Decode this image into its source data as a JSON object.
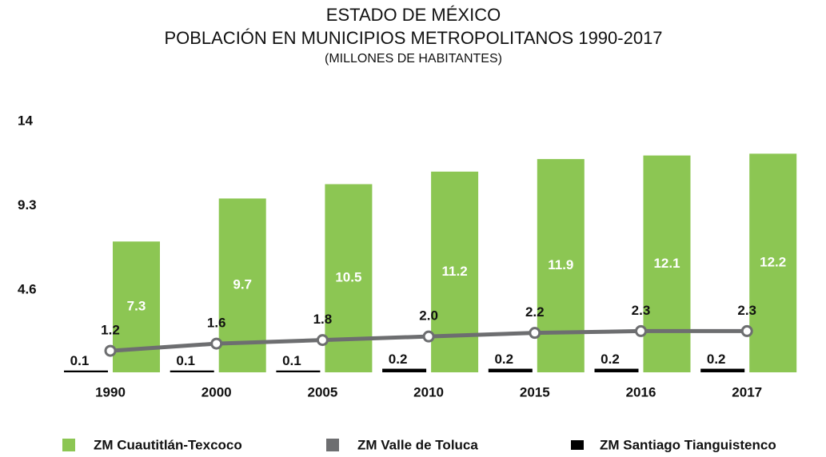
{
  "chart_data": {
    "type": "bar",
    "title": [
      "ESTADO DE MÉXICO",
      "POBLACIÓN EN MUNICIPIOS METROPOLITANOS 1990-2017",
      "(MILLONES DE HABITANTES)"
    ],
    "categories": [
      "1990",
      "2000",
      "2005",
      "2010",
      "2015",
      "2016",
      "2017"
    ],
    "series": [
      {
        "name": "ZM Cuautitlán-Texcoco",
        "color": "#8cc653",
        "mark": "bar",
        "values": [
          7.3,
          9.7,
          10.5,
          11.2,
          11.9,
          12.1,
          12.2
        ],
        "value_labels": [
          "7.3",
          "9.7",
          "10.5",
          "11.2",
          "11.9",
          "12.1",
          "12.2"
        ]
      },
      {
        "name": "ZM Valle de Toluca",
        "color": "#6d6e70",
        "mark": "line",
        "values": [
          1.2,
          1.6,
          1.8,
          2.0,
          2.2,
          2.3,
          2.3
        ],
        "value_labels": [
          "1.2",
          "1.6",
          "1.8",
          "2.0",
          "2.2",
          "2.3",
          "2.3"
        ]
      },
      {
        "name": "ZM Santiago Tianguistenco",
        "color": "#000000",
        "mark": "bar",
        "values": [
          0.1,
          0.1,
          0.1,
          0.2,
          0.2,
          0.2,
          0.2
        ],
        "value_labels": [
          "0.1",
          "0.1",
          "0.1",
          "0.2",
          "0.2",
          "0.2",
          "0.2"
        ]
      }
    ],
    "ylim": [
      0,
      14
    ],
    "yticks": [
      4.6,
      9.3,
      14
    ],
    "grid": false
  }
}
